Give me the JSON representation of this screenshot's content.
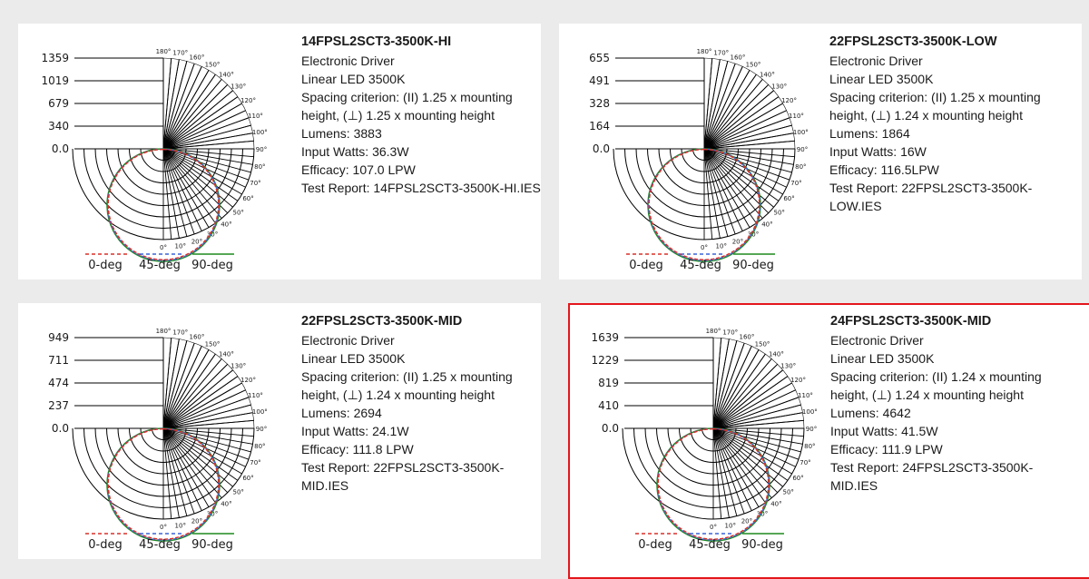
{
  "colors": {
    "background": "#ebebeb",
    "card": "#ffffff",
    "selected_border": "#e3161c",
    "curve_0deg": "#d9302a",
    "curve_45deg": "#3a64d8",
    "curve_90deg": "#1f8a1f"
  },
  "polar_labels": {
    "angles": [
      "0°",
      "10°",
      "20°",
      "30°",
      "40°",
      "50°",
      "60°",
      "70°",
      "80°",
      "90°",
      "100°",
      "110°",
      "120°",
      "130°",
      "140°",
      "150°",
      "160°",
      "170°",
      "180°"
    ]
  },
  "legend": {
    "items": [
      {
        "label": "0-deg",
        "color": "#d9302a",
        "style": "dashed"
      },
      {
        "label": "45-deg",
        "color": "#3a64d8",
        "style": "dashed"
      },
      {
        "label": "90-deg",
        "color": "#1f8a1f",
        "style": "solid"
      }
    ]
  },
  "cards": [
    {
      "selected": false,
      "name": "14FPSL2SCT3-3500K-HI",
      "driver": "Electronic Driver",
      "source": "Linear LED 3500K",
      "spacing": "Spacing criterion: (II) 1.25 x mounting height, (⊥) 1.25 x mounting height",
      "lumens": "Lumens: 3883",
      "watts": "Input Watts: 36.3W",
      "efficacy": "Efficacy: 107.0 LPW",
      "report": "Test Report: 14FPSL2SCT3-3500K-HI.IES",
      "scale_labels": [
        "1359",
        "1019",
        "679",
        "340",
        "0.0"
      ]
    },
    {
      "selected": false,
      "name": "22FPSL2SCT3-3500K-LOW",
      "driver": "Electronic Driver",
      "source": "Linear LED 3500K",
      "spacing": "Spacing criterion: (II) 1.25 x mounting height, (⊥) 1.24 x mounting height",
      "lumens": "Lumens: 1864",
      "watts": "Input Watts: 16W",
      "efficacy": "Efficacy: 116.5LPW",
      "report": "Test Report: 22FPSL2SCT3-3500K-LOW.IES",
      "scale_labels": [
        "655",
        "491",
        "328",
        "164",
        "0.0"
      ]
    },
    {
      "selected": false,
      "name": "22FPSL2SCT3-3500K-MID",
      "driver": "Electronic Driver",
      "source": "Linear LED 3500K",
      "spacing": "Spacing criterion: (II) 1.25 x mounting height, (⊥) 1.24 x mounting height",
      "lumens": "Lumens: 2694",
      "watts": "Input Watts: 24.1W",
      "efficacy": "Efficacy: 111.8 LPW",
      "report": "Test Report: 22FPSL2SCT3-3500K-MID.IES",
      "scale_labels": [
        "949",
        "711",
        "474",
        "237",
        "0.0"
      ]
    },
    {
      "selected": true,
      "name": "24FPSL2SCT3-3500K-MID",
      "driver": "Electronic Driver",
      "source": "Linear LED 3500K",
      "spacing": "Spacing criterion: (II) 1.24 x mounting height, (⊥) 1.24 x mounting height",
      "lumens": "Lumens: 4642",
      "watts": "Input Watts: 41.5W",
      "efficacy": "Efficacy: 111.9 LPW",
      "report": "Test Report: 24FPSL2SCT3-3500K-MID.IES",
      "scale_labels": [
        "1639",
        "1229",
        "819",
        "410",
        "0.0"
      ]
    }
  ]
}
